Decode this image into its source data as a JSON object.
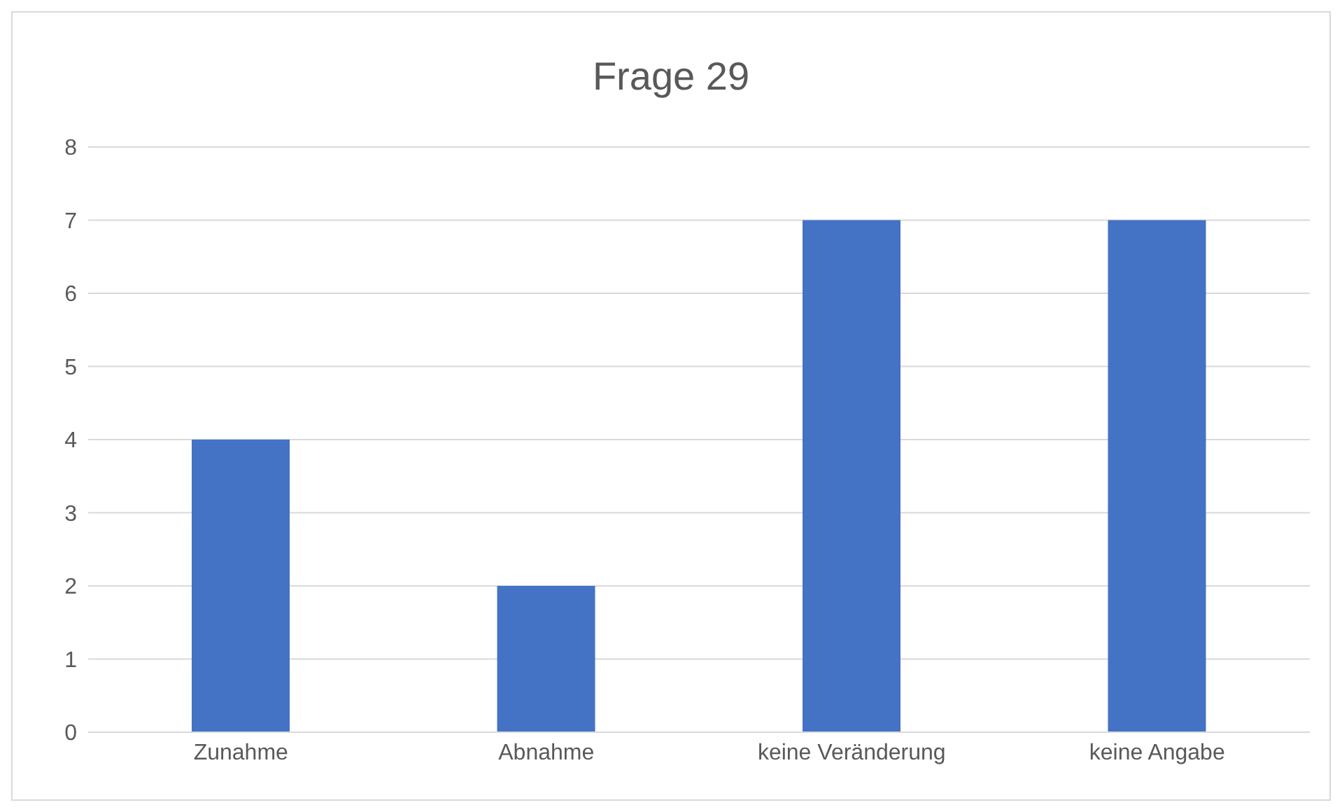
{
  "chart_data": {
    "type": "bar",
    "title": "Frage 29",
    "categories": [
      "Zunahme",
      "Abnahme",
      "keine Veränderung",
      "keine Angabe"
    ],
    "values": [
      4,
      2,
      7,
      7
    ],
    "color": "#4472c4",
    "ylim": [
      0,
      8
    ],
    "yticks": [
      0,
      1,
      2,
      3,
      4,
      5,
      6,
      7,
      8
    ],
    "grid": "y"
  }
}
